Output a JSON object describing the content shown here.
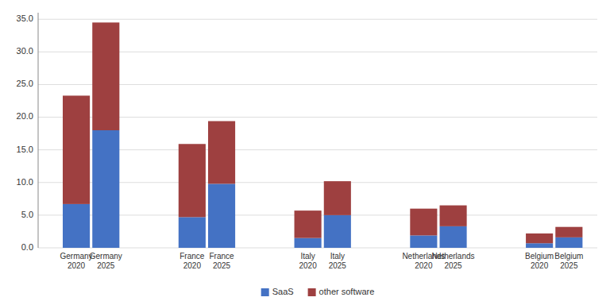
{
  "chart_data": {
    "type": "bar",
    "stacked": true,
    "grid": true,
    "legend": "bottom",
    "categories": [
      "Germany\n2020",
      "Germany\n2025",
      "France\n2020",
      "France\n2025",
      "Italy\n2020",
      "Italy\n2025",
      "Netherlands\n2020",
      "Netherlands\n2025",
      "Belgium\n2020",
      "Belgium\n2025"
    ],
    "series": [
      {
        "name": "SaaS",
        "color": "#4472C4",
        "values": [
          6.7,
          18.0,
          4.7,
          9.8,
          1.5,
          5.0,
          1.9,
          3.3,
          0.7,
          1.6
        ]
      },
      {
        "name": "other software",
        "color": "#9E4040",
        "values": [
          16.6,
          16.5,
          11.2,
          9.6,
          4.2,
          5.2,
          4.1,
          3.2,
          1.5,
          1.6
        ]
      }
    ],
    "ylim": [
      0,
      36
    ],
    "yticks": [
      {
        "value": 0,
        "label": "0.0"
      },
      {
        "value": 5,
        "label": "5.0"
      },
      {
        "value": 10,
        "label": "10.0"
      },
      {
        "value": 15,
        "label": "15.0"
      },
      {
        "value": 20,
        "label": "20.0"
      },
      {
        "value": 25,
        "label": "25.0"
      },
      {
        "value": 30,
        "label": "30.0"
      },
      {
        "value": 35,
        "label": "35.0"
      }
    ]
  }
}
